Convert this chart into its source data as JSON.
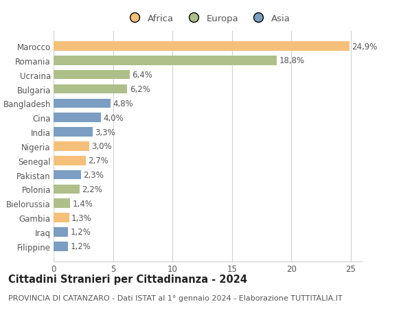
{
  "categories": [
    "Filippine",
    "Iraq",
    "Gambia",
    "Bielorussia",
    "Polonia",
    "Pakistan",
    "Senegal",
    "Nigeria",
    "India",
    "Cina",
    "Bangladesh",
    "Bulgaria",
    "Ucraina",
    "Romania",
    "Marocco"
  ],
  "values": [
    1.2,
    1.2,
    1.3,
    1.4,
    2.2,
    2.3,
    2.7,
    3.0,
    3.3,
    4.0,
    4.8,
    6.2,
    6.4,
    18.8,
    24.9
  ],
  "labels": [
    "1,2%",
    "1,2%",
    "1,3%",
    "1,4%",
    "2,2%",
    "2,3%",
    "2,7%",
    "3,0%",
    "3,3%",
    "4,0%",
    "4,8%",
    "6,2%",
    "6,4%",
    "18,8%",
    "24,9%"
  ],
  "continents": [
    "Asia",
    "Asia",
    "Africa",
    "Europa",
    "Europa",
    "Asia",
    "Africa",
    "Africa",
    "Asia",
    "Asia",
    "Asia",
    "Europa",
    "Europa",
    "Europa",
    "Africa"
  ],
  "colors": {
    "Africa": "#F5C07A",
    "Europa": "#AEBF8A",
    "Asia": "#7B9EC2"
  },
  "legend_order": [
    "Africa",
    "Europa",
    "Asia"
  ],
  "xlim": [
    0,
    26
  ],
  "xticks": [
    0,
    5,
    10,
    15,
    20,
    25
  ],
  "title": "Cittadini Stranieri per Cittadinanza - 2024",
  "subtitle": "PROVINCIA DI CATANZARO - Dati ISTAT al 1° gennaio 2024 - Elaborazione TUTTITALIA.IT",
  "bg_color": "#ffffff",
  "grid_color": "#d0d0d0",
  "bar_height": 0.65,
  "label_fontsize": 8.5,
  "title_fontsize": 10.5,
  "subtitle_fontsize": 8,
  "tick_fontsize": 8.5,
  "legend_fontsize": 9.5,
  "label_color": "#555555",
  "tick_color": "#555555"
}
